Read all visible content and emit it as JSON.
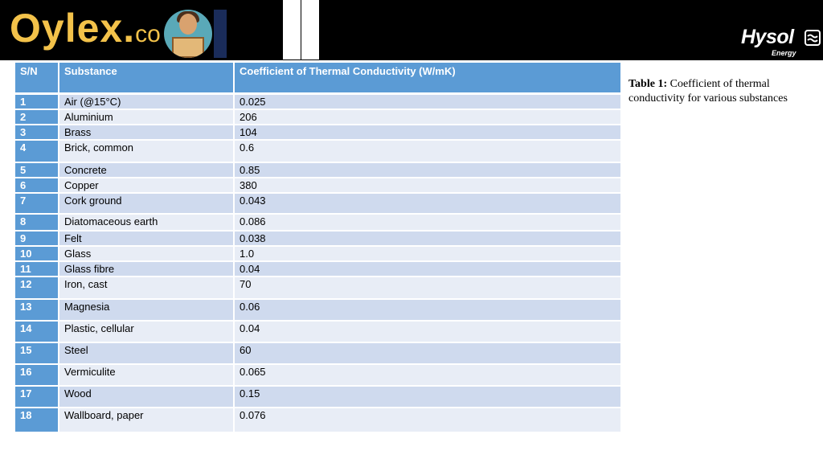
{
  "header": {
    "brand_name": "Oylex.",
    "brand_tld": "co",
    "partner_name": "Hysol",
    "partner_sub": "Energy",
    "banner_color": "#000000",
    "brand_color": "#f3c24a"
  },
  "table": {
    "header_color": "#5b9bd5",
    "row_colors": [
      "#cfdaee",
      "#e8edf6"
    ],
    "columns": [
      "S/N",
      "Substance",
      "Coefficient of Thermal Conductivity (W/mK)"
    ],
    "rows": [
      {
        "sn": "1",
        "substance": "Air (@15°C)",
        "value": "0.025"
      },
      {
        "sn": "2",
        "substance": "Aluminium",
        "value": "206"
      },
      {
        "sn": "3",
        "substance": "Brass",
        "value": "104"
      },
      {
        "sn": "4",
        "substance": "Brick, common",
        "value": "0.6"
      },
      {
        "sn": "5",
        "substance": "Concrete",
        "value": "0.85"
      },
      {
        "sn": "6",
        "substance": "Copper",
        "value": "380"
      },
      {
        "sn": "7",
        "substance": "Cork ground",
        "value": "0.043"
      },
      {
        "sn": "8",
        "substance": "Diatomaceous earth",
        "value": "0.086"
      },
      {
        "sn": "9",
        "substance": "Felt",
        "value": "0.038"
      },
      {
        "sn": "10",
        "substance": "Glass",
        "value": "1.0"
      },
      {
        "sn": "11",
        "substance": "Glass fibre",
        "value": "0.04"
      },
      {
        "sn": "12",
        "substance": "Iron, cast",
        "value": "70"
      },
      {
        "sn": "13",
        "substance": "Magnesia",
        "value": "0.06"
      },
      {
        "sn": "14",
        "substance": "Plastic, cellular",
        "value": "0.04"
      },
      {
        "sn": "15",
        "substance": "Steel",
        "value": "60"
      },
      {
        "sn": "16",
        "substance": "Vermiculite",
        "value": "0.065"
      },
      {
        "sn": "17",
        "substance": "Wood",
        "value": "0.15"
      },
      {
        "sn": "18",
        "substance": "Wallboard, paper",
        "value": "0.076"
      }
    ]
  },
  "caption": {
    "label": "Table 1:",
    "text": "Coefficient of thermal conductivity for various substances"
  }
}
